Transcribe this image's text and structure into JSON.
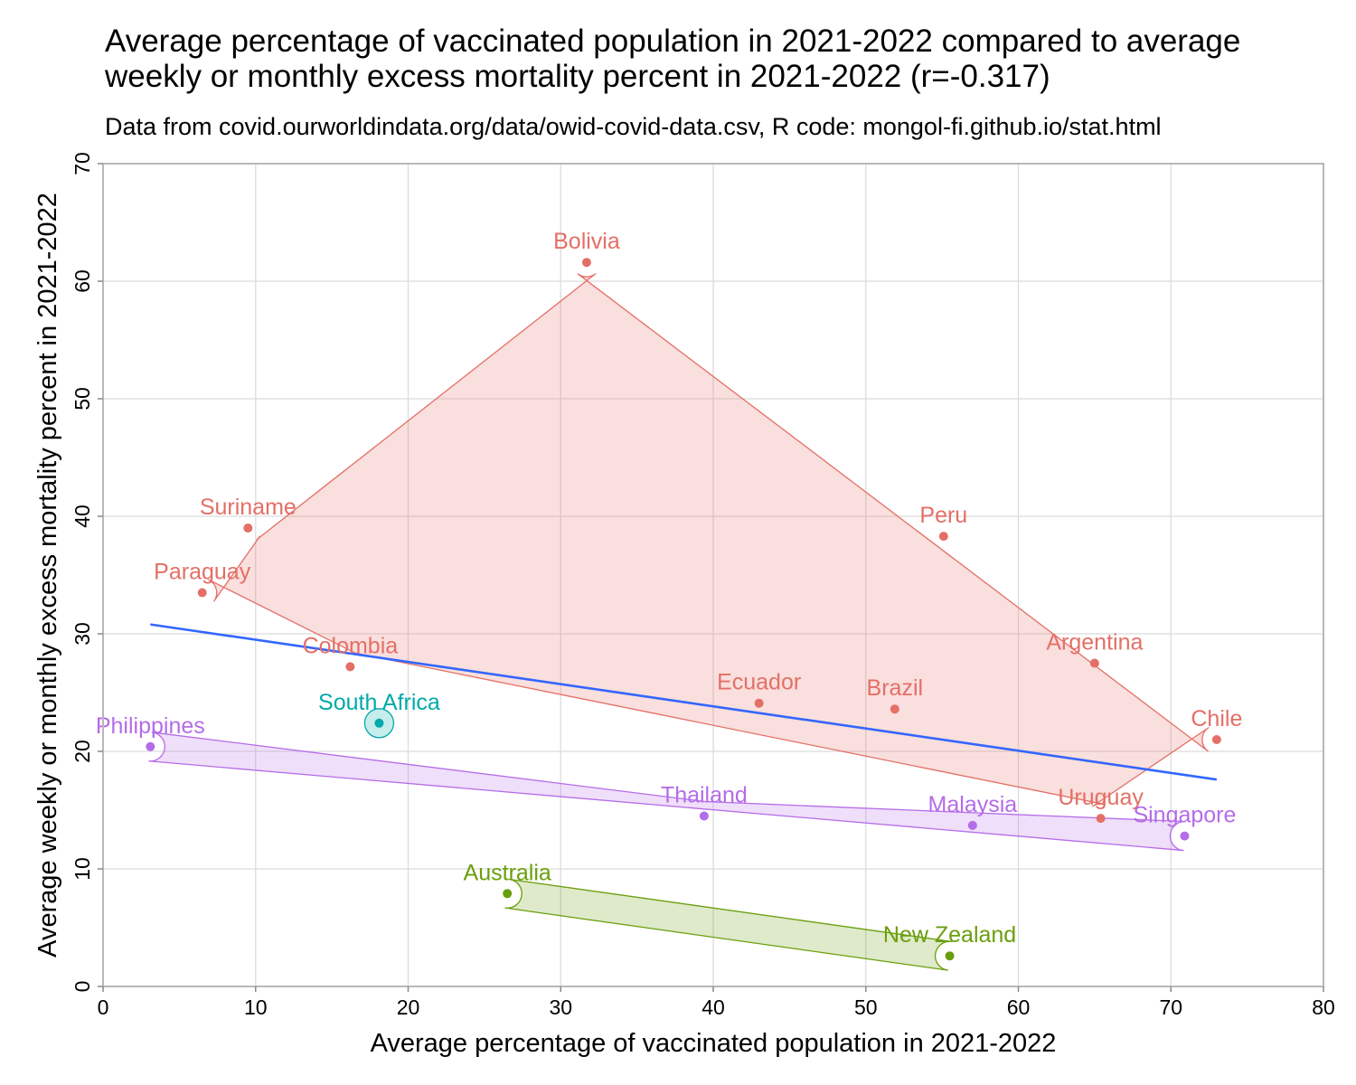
{
  "chart_data": {
    "type": "scatter",
    "title": "Average percentage of vaccinated population in 2021-2022 compared to average weekly or monthly excess mortality percent in 2021-2022 (r=-0.317)",
    "subtitle": "Data from covid.ourworldindata.org/data/owid-covid-data.csv, R code: mongol-fi.github.io/stat.html",
    "xlabel": "Average percentage of vaccinated population in 2021-2022",
    "ylabel": "Average weekly or monthly excess mortality percent in 2021-2022",
    "xlim": [
      0,
      80
    ],
    "ylim": [
      0,
      70
    ],
    "xticks": [
      0,
      10,
      20,
      30,
      40,
      50,
      60,
      70,
      80
    ],
    "yticks": [
      0,
      10,
      20,
      30,
      40,
      50,
      60,
      70
    ],
    "grid": true,
    "groups": [
      {
        "color": "#e46f66",
        "points": [
          {
            "label": "Bolivia",
            "x": 31.7,
            "y": 61.6
          },
          {
            "label": "Suriname",
            "x": 9.5,
            "y": 39.0
          },
          {
            "label": "Paraguay",
            "x": 6.5,
            "y": 33.5
          },
          {
            "label": "Colombia",
            "x": 16.2,
            "y": 27.2
          },
          {
            "label": "Ecuador",
            "x": 43.0,
            "y": 24.1
          },
          {
            "label": "Brazil",
            "x": 51.9,
            "y": 23.6
          },
          {
            "label": "Peru",
            "x": 55.1,
            "y": 38.3
          },
          {
            "label": "Argentina",
            "x": 65.0,
            "y": 27.5
          },
          {
            "label": "Chile",
            "x": 73.0,
            "y": 21.0
          },
          {
            "label": "Uruguay",
            "x": 65.4,
            "y": 14.3
          }
        ]
      },
      {
        "color": "#00aaaa",
        "points": [
          {
            "label": "South Africa",
            "x": 18.1,
            "y": 22.4
          }
        ]
      },
      {
        "color": "#b56ce8",
        "points": [
          {
            "label": "Philippines",
            "x": 3.1,
            "y": 20.4
          },
          {
            "label": "Thailand",
            "x": 39.4,
            "y": 14.5
          },
          {
            "label": "Malaysia",
            "x": 57.0,
            "y": 13.7
          },
          {
            "label": "Singapore",
            "x": 70.9,
            "y": 12.8
          }
        ]
      },
      {
        "color": "#6a9e0c",
        "points": [
          {
            "label": "Australia",
            "x": 26.5,
            "y": 7.9
          },
          {
            "label": "New Zealand",
            "x": 55.5,
            "y": 2.6
          }
        ]
      }
    ],
    "regression_line": {
      "color": "#3366ff",
      "x": [
        3.1,
        73.0
      ],
      "y": [
        30.8,
        17.6
      ]
    }
  }
}
